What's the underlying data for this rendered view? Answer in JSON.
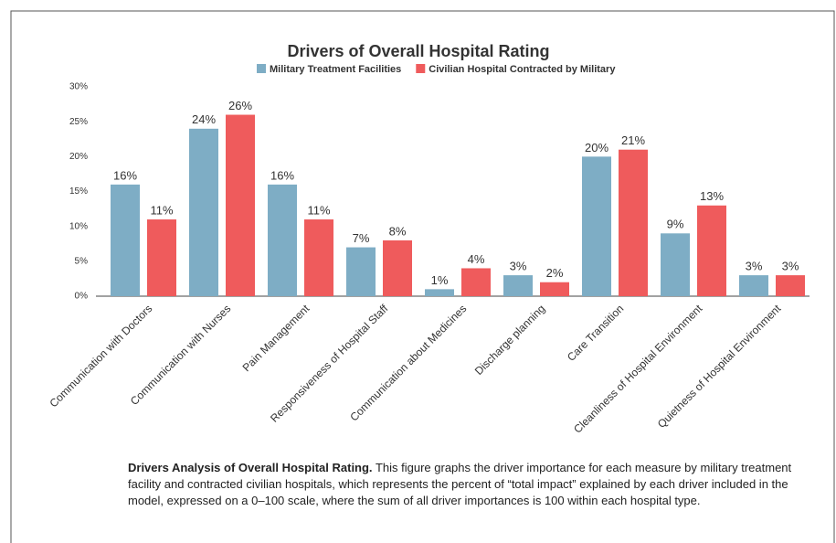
{
  "chart_data": {
    "type": "bar",
    "title": "Drivers of Overall Hospital Rating",
    "categories": [
      "Communication with Doctors",
      "Communication with Nurses",
      "Pain Management",
      "Responsiveness of Hospital Staff",
      "Communication about Medicines",
      "Discharge planning",
      "Care Transition",
      "Cleanliness of Hospital Environment",
      "Quietness of Hospital Environment"
    ],
    "series": [
      {
        "name": "Military Treatment Facilities",
        "color": "#7eadc5",
        "values": [
          16,
          24,
          16,
          7,
          1,
          3,
          20,
          9,
          3
        ],
        "value_labels": [
          "16%",
          "24%",
          "16%",
          "7%",
          "1%",
          "3%",
          "20%",
          "9%",
          "3%"
        ]
      },
      {
        "name": "Civilian Hospital Contracted by Military",
        "color": "#ef5b5c",
        "values": [
          11,
          26,
          11,
          8,
          4,
          2,
          21,
          13,
          3
        ],
        "value_labels": [
          "11%",
          "26%",
          "11%",
          "8%",
          "4%",
          "2%",
          "21%",
          "13%",
          "3%"
        ]
      }
    ],
    "ylim": [
      0,
      30
    ],
    "yticks": [
      {
        "value": 0,
        "label": "0%"
      },
      {
        "value": 5,
        "label": "5%"
      },
      {
        "value": 10,
        "label": "10%"
      },
      {
        "value": 15,
        "label": "15%"
      },
      {
        "value": 20,
        "label": "20%"
      },
      {
        "value": 25,
        "label": "25%"
      },
      {
        "value": 30,
        "label": "30%"
      }
    ],
    "grid": false,
    "caption": {
      "title": "Drivers Analysis of Overall Hospital Rating.",
      "text": "This figure graphs the driver importance for each measure by military treatment facility and contracted civilian hospitals, which represents the percent of “total impact” explained by each driver included in the model, expressed on a 0–100 scale, where the sum of all driver importances is 100 within each hospital type."
    }
  }
}
